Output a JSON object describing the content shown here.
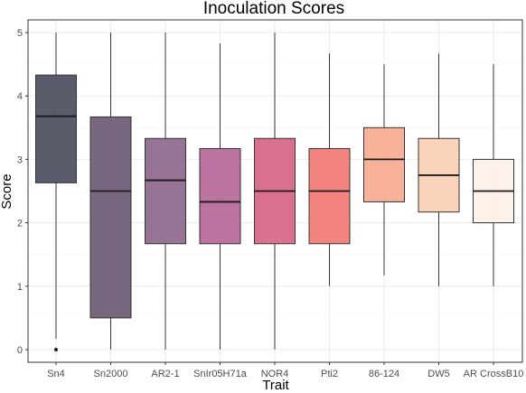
{
  "chart_data": {
    "type": "boxplot",
    "title": "Inoculation Scores",
    "xlabel": "Trait",
    "ylabel": "Score",
    "ylim": [
      -0.2,
      5.2
    ],
    "yticks": [
      "0",
      "1",
      "2",
      "3",
      "4",
      "5"
    ],
    "grid": true,
    "legend": "none",
    "categories": [
      "Sn4",
      "Sn2000",
      "AR2-1",
      "SnIr05H71a",
      "NOR4",
      "Pti2",
      "86-124",
      "DW5",
      "AR CrossB10"
    ],
    "boxes": [
      {
        "min": 0.17,
        "q1": 2.63,
        "median": 3.68,
        "q3": 4.33,
        "max": 5.0,
        "outliers": [
          0.0
        ],
        "color": "#3d3f52"
      },
      {
        "min": 0.0,
        "q1": 0.5,
        "median": 2.5,
        "q3": 3.67,
        "max": 5.0,
        "outliers": [],
        "color": "#5f4d69"
      },
      {
        "min": 0.0,
        "q1": 1.67,
        "median": 2.67,
        "q3": 3.33,
        "max": 5.0,
        "outliers": [],
        "color": "#855a82"
      },
      {
        "min": 0.0,
        "q1": 1.67,
        "median": 2.33,
        "q3": 3.17,
        "max": 4.83,
        "outliers": [],
        "color": "#b05b8f"
      },
      {
        "min": 0.0,
        "q1": 1.67,
        "median": 2.5,
        "q3": 3.33,
        "max": 5.0,
        "outliers": [],
        "color": "#d5587e"
      },
      {
        "min": 1.0,
        "q1": 1.67,
        "median": 2.5,
        "q3": 3.17,
        "max": 4.67,
        "outliers": [],
        "color": "#f16f6a"
      },
      {
        "min": 1.17,
        "q1": 2.33,
        "median": 3.0,
        "q3": 3.5,
        "max": 4.5,
        "outliers": [],
        "color": "#f7a487"
      },
      {
        "min": 1.0,
        "q1": 2.17,
        "median": 2.75,
        "q3": 3.33,
        "max": 4.67,
        "outliers": [],
        "color": "#fbccb0"
      },
      {
        "min": 1.0,
        "q1": 2.0,
        "median": 2.5,
        "q3": 3.0,
        "max": 4.5,
        "outliers": [],
        "color": "#fdf0e6"
      }
    ]
  }
}
